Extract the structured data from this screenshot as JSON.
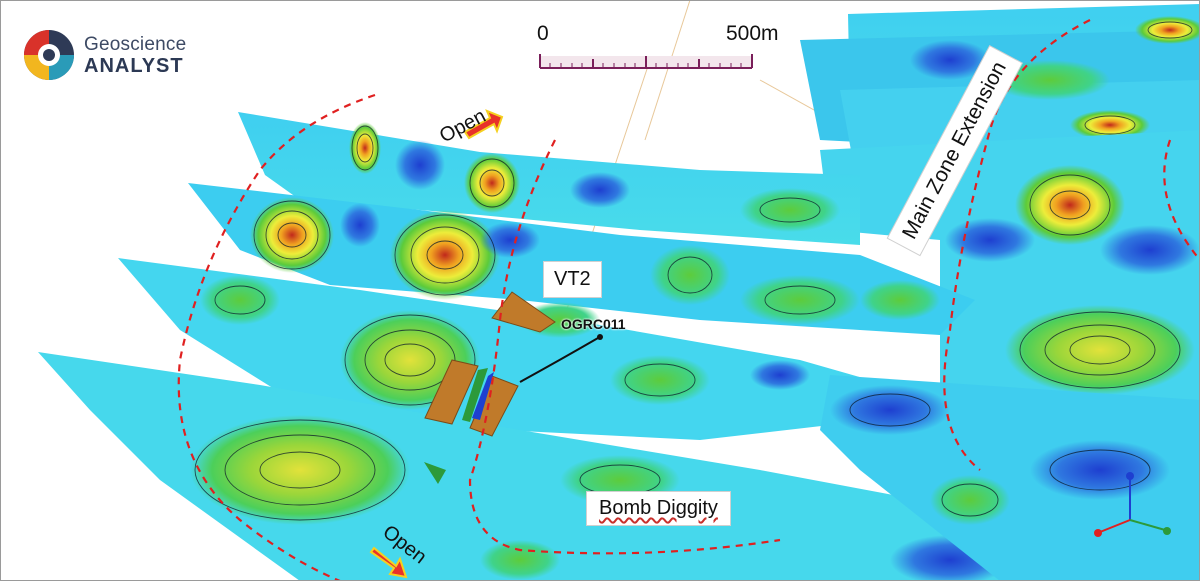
{
  "logo": {
    "line1": "Geoscience",
    "line2": "ANALYST"
  },
  "scale_bar": {
    "min_label": "0",
    "max_label": "500m"
  },
  "labels": {
    "vt2": "VT2",
    "bomb_diggity": "Bomb Diggity",
    "main_zone_extension": "Main Zone Extension",
    "drillhole": "OGRC011",
    "open_north": "Open",
    "open_south": "Open"
  },
  "colors": {
    "section_base": "#3fd3ef",
    "deep_blue": "#1f49d6",
    "green_anomaly": "#48c63a",
    "yellow_anomaly": "#e8e83a",
    "red_anomaly": "#d9321c",
    "outline_dash": "#e02020",
    "arrow": "#e8322a",
    "target_block": "#c07a2a"
  }
}
